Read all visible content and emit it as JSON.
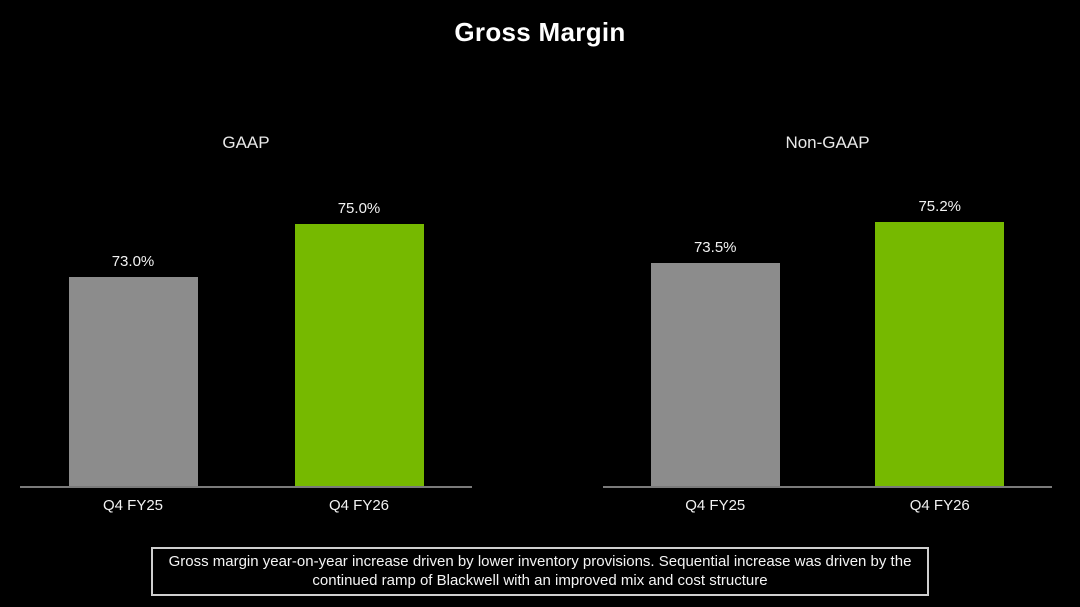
{
  "page": {
    "title": "Gross Margin",
    "caption": "Gross margin year-on-year increase driven by lower inventory provisions. Sequential increase was driven by the continued ramp of Blackwell with an improved mix and cost structure"
  },
  "colors": {
    "background": "#000000",
    "prior_quarter_bar": "#8C8C8C",
    "current_quarter_bar": "#76B900",
    "axis_line": "#7A7A7A",
    "text": "#FFFFFF",
    "caption_border": "#CFCFCF"
  },
  "chart_data": [
    {
      "type": "bar",
      "title": "GAAP",
      "categories": [
        "Q4 FY25",
        "Q4 FY26"
      ],
      "values": [
        73.0,
        75.0
      ],
      "value_labels": [
        "73.0%",
        "75.0%"
      ],
      "bar_colors": [
        "#8C8C8C",
        "#76B900"
      ],
      "ylim": [
        65,
        76
      ],
      "xlabel": "",
      "ylabel": "",
      "grid": false,
      "legend": false
    },
    {
      "type": "bar",
      "title": "Non-GAAP",
      "categories": [
        "Q4 FY25",
        "Q4 FY26"
      ],
      "values": [
        73.5,
        75.2
      ],
      "value_labels": [
        "73.5%",
        "75.2%"
      ],
      "bar_colors": [
        "#8C8C8C",
        "#76B900"
      ],
      "ylim": [
        65,
        76
      ],
      "xlabel": "",
      "ylabel": "",
      "grid": false,
      "legend": false
    }
  ]
}
